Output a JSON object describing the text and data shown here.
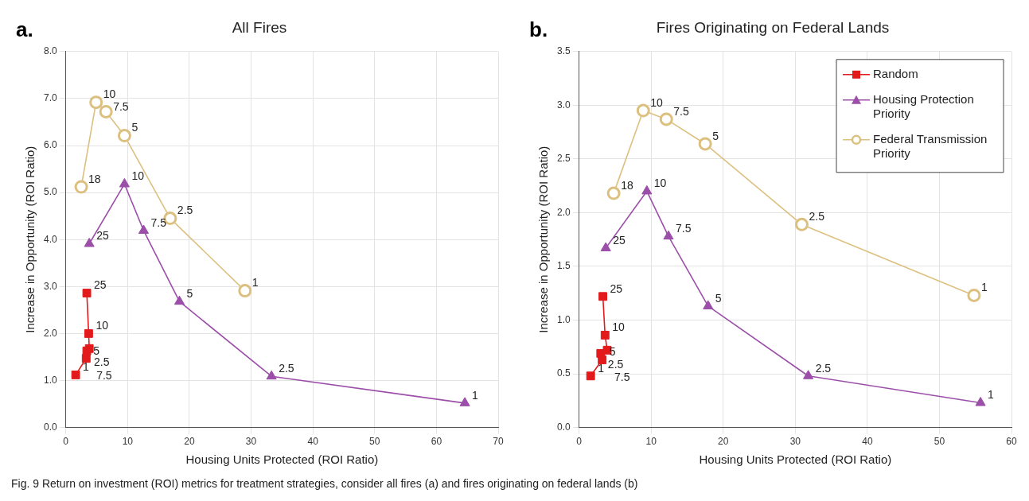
{
  "chart_data": [
    {
      "type": "line",
      "title": "All Fires",
      "xlabel": "Housing Units Protected (ROI Ratio)",
      "ylabel": "Increase in Opportunity (ROI Ratio)",
      "xlim": [
        0,
        70
      ],
      "xticks": [
        0,
        10,
        20,
        30,
        40,
        50,
        60,
        70
      ],
      "ylim": [
        0,
        8
      ],
      "yticks": [
        {
          "value": 0,
          "label": "0.0"
        },
        {
          "value": 1,
          "label": "1.0"
        },
        {
          "value": 2,
          "label": "2.0"
        },
        {
          "value": 3,
          "label": "3.0"
        },
        {
          "value": 4,
          "label": "4.0"
        },
        {
          "value": 5,
          "label": "5.0"
        },
        {
          "value": 6,
          "label": "6.0"
        },
        {
          "value": 7,
          "label": "7.0"
        },
        {
          "value": 8,
          "label": "8.0"
        }
      ],
      "grid": true,
      "legend": false,
      "series": [
        {
          "color": "#e31a1c",
          "marker": "square",
          "x": [
            1.6,
            3.3,
            3.4,
            3.8,
            3.7,
            3.4
          ],
          "values": [
            1.12,
            1.47,
            1.63,
            1.68,
            2.0,
            2.86
          ]
        },
        {
          "color": "#9b4fa8",
          "marker": "triangle",
          "x": [
            3.8,
            9.5,
            12.6,
            18.4,
            33.3,
            64.6
          ],
          "values": [
            3.91,
            5.18,
            4.19,
            2.68,
            1.09,
            0.52
          ]
        },
        {
          "color": "#dcc080",
          "marker": "circle",
          "x": [
            2.5,
            4.9,
            6.5,
            9.5,
            16.9,
            29.0
          ],
          "values": [
            5.12,
            6.92,
            6.72,
            6.21,
            4.45,
            2.91
          ]
        }
      ],
      "annotations": [
        "a.",
        {
          "text": "1",
          "x": 1.6,
          "y": 1.12
        },
        {
          "text": "5",
          "x": 3.3,
          "y": 1.47
        },
        {
          "text": "2.5",
          "x": 3.4,
          "y": 1.63
        },
        {
          "text": "7.5",
          "x": 3.8,
          "y": 1.68
        },
        {
          "text": "10",
          "x": 3.7,
          "y": 2.0
        },
        {
          "text": "25",
          "x": 3.4,
          "y": 2.86
        },
        {
          "text": "25",
          "x": 3.8,
          "y": 3.91
        },
        {
          "text": "10",
          "x": 9.5,
          "y": 5.18
        },
        {
          "text": "7.5",
          "x": 12.6,
          "y": 4.19
        },
        {
          "text": "5",
          "x": 18.4,
          "y": 2.68
        },
        {
          "text": "2.5",
          "x": 33.3,
          "y": 1.09
        },
        {
          "text": "1",
          "x": 64.6,
          "y": 0.52
        },
        {
          "text": "18",
          "x": 2.5,
          "y": 5.12
        },
        {
          "text": "10",
          "x": 4.9,
          "y": 6.92
        },
        {
          "text": "7.5",
          "x": 6.5,
          "y": 6.72
        },
        {
          "text": "5",
          "x": 9.5,
          "y": 6.21
        },
        {
          "text": "2.5",
          "x": 16.9,
          "y": 4.45
        },
        {
          "text": "1",
          "x": 29.0,
          "y": 2.91
        },
        "Fig. 9  Return on investment (ROI) metrics for treatment strategies, consider all fires (a) and fires originating on federal lands (b)"
      ]
    },
    {
      "type": "line",
      "title": "Fires Originating on Federal Lands",
      "xlabel": "Housing Units Protected (ROI Ratio)",
      "ylabel": "Increase in Opportunity (ROI Ratio)",
      "xlim": [
        0,
        60
      ],
      "xticks": [
        0,
        10,
        20,
        30,
        40,
        50,
        60
      ],
      "ylim": [
        0,
        3.5
      ],
      "yticks": [
        {
          "value": 0,
          "label": "0.0"
        },
        0.5,
        {
          "value": 1,
          "label": "1.0"
        },
        1.5,
        {
          "value": 2,
          "label": "2.0"
        },
        2.5,
        {
          "value": 3,
          "label": "3.0"
        },
        3.5
      ],
      "grid": true,
      "legend": "top right",
      "series": [
        {
          "name": "Random",
          "color": "#e31a1c",
          "marker": "square",
          "x": [
            1.6,
            3.2,
            3.0,
            3.9,
            3.6,
            3.3
          ],
          "values": [
            0.48,
            0.63,
            0.69,
            0.72,
            0.86,
            1.22
          ]
        },
        {
          "name": "Housing Protection Priority",
          "color": "#9b4fa8",
          "marker": "triangle",
          "x": [
            3.7,
            9.4,
            12.4,
            17.9,
            31.8,
            55.7
          ],
          "values": [
            1.67,
            2.2,
            1.78,
            1.13,
            0.48,
            0.23
          ]
        },
        {
          "name": "Federal Transmission Priority",
          "color": "#dcc080",
          "marker": "circle",
          "x": [
            4.8,
            8.9,
            12.1,
            17.5,
            30.9,
            54.8
          ],
          "values": [
            2.18,
            2.95,
            2.87,
            2.64,
            1.89,
            1.23
          ]
        }
      ],
      "annotations": [
        "b.",
        {
          "text": "1",
          "x": 1.6,
          "y": 0.48
        },
        {
          "text": "5",
          "x": 3.2,
          "y": 0.63
        },
        {
          "text": "2.5",
          "x": 3.0,
          "y": 0.69
        },
        {
          "text": "7.5",
          "x": 3.9,
          "y": 0.72
        },
        {
          "text": "10",
          "x": 3.6,
          "y": 0.86
        },
        {
          "text": "25",
          "x": 3.3,
          "y": 1.22
        },
        {
          "text": "25",
          "x": 3.7,
          "y": 1.67
        },
        {
          "text": "10",
          "x": 9.4,
          "y": 2.2
        },
        {
          "text": "7.5",
          "x": 12.4,
          "y": 1.78
        },
        {
          "text": "5",
          "x": 17.9,
          "y": 1.13
        },
        {
          "text": "2.5",
          "x": 31.8,
          "y": 0.48
        },
        {
          "text": "1",
          "x": 55.7,
          "y": 0.23
        },
        {
          "text": "18",
          "x": 4.8,
          "y": 2.18
        },
        {
          "text": "10",
          "x": 8.9,
          "y": 2.95
        },
        {
          "text": "7.5",
          "x": 12.1,
          "y": 2.87
        },
        {
          "text": "5",
          "x": 17.5,
          "y": 2.64
        },
        {
          "text": "2.5",
          "x": 30.9,
          "y": 1.89
        },
        {
          "text": "1",
          "x": 54.8,
          "y": 1.23
        }
      ]
    }
  ]
}
